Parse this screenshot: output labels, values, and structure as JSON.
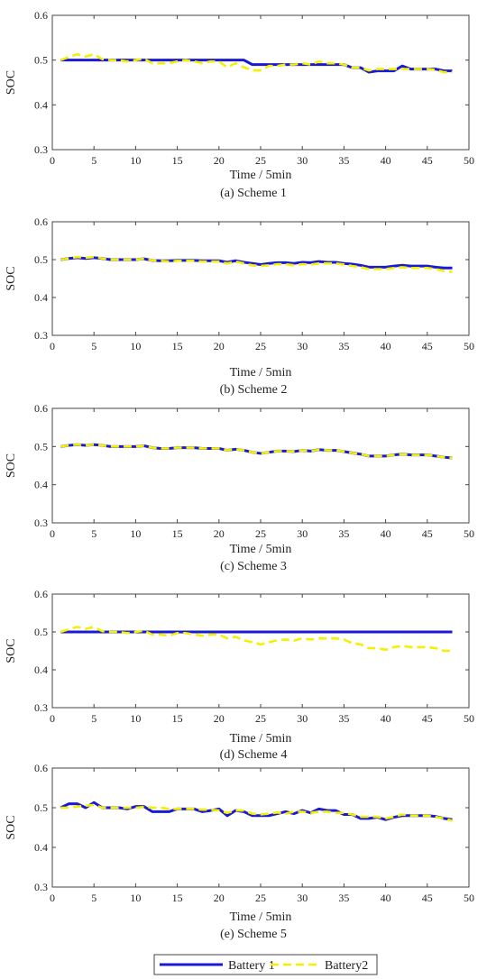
{
  "colors": {
    "battery1": "#1a1ad6",
    "battery2": "#f5f000",
    "axis": "#444444"
  },
  "legend": [
    {
      "label": "Battery  1",
      "style": "solid",
      "color": "#1a1ad6"
    },
    {
      "label": "Battery2",
      "style": "dashed",
      "color": "#f5f000"
    }
  ],
  "chart_data": [
    {
      "type": "line",
      "caption": "(a) Scheme 1",
      "xlabel": "Time / 5min",
      "ylabel": "SOC",
      "xlim": [
        0,
        50
      ],
      "ylim": [
        0.3,
        0.6
      ],
      "xticks": [
        "0",
        "5",
        "10",
        "15",
        "20",
        "25",
        "30",
        "35",
        "40",
        "45",
        "50"
      ],
      "yticks": [
        "0.3",
        "0.4",
        "0.5",
        "0.6"
      ],
      "grid": false,
      "x": [
        1,
        2,
        3,
        4,
        5,
        6,
        7,
        8,
        9,
        10,
        11,
        12,
        13,
        14,
        15,
        16,
        17,
        18,
        19,
        20,
        21,
        22,
        23,
        24,
        25,
        26,
        27,
        28,
        29,
        30,
        31,
        32,
        33,
        34,
        35,
        36,
        37,
        38,
        39,
        40,
        41,
        42,
        43,
        44,
        45,
        46,
        47,
        48
      ],
      "series": [
        {
          "name": "Battery  1",
          "values": [
            0.5,
            0.5,
            0.5,
            0.5,
            0.5,
            0.5,
            0.5,
            0.5,
            0.5,
            0.5,
            0.5,
            0.5,
            0.5,
            0.5,
            0.5,
            0.5,
            0.5,
            0.5,
            0.5,
            0.5,
            0.5,
            0.5,
            0.5,
            0.49,
            0.49,
            0.49,
            0.49,
            0.49,
            0.49,
            0.49,
            0.49,
            0.49,
            0.49,
            0.49,
            0.49,
            0.483,
            0.483,
            0.473,
            0.476,
            0.476,
            0.476,
            0.487,
            0.48,
            0.48,
            0.48,
            0.48,
            0.476,
            0.476
          ]
        },
        {
          "name": "Battery2",
          "values": [
            0.5,
            0.507,
            0.513,
            0.508,
            0.513,
            0.502,
            0.5,
            0.5,
            0.497,
            0.5,
            0.503,
            0.493,
            0.493,
            0.493,
            0.497,
            0.5,
            0.497,
            0.493,
            0.497,
            0.497,
            0.484,
            0.493,
            0.484,
            0.477,
            0.477,
            0.487,
            0.487,
            0.49,
            0.49,
            0.493,
            0.49,
            0.497,
            0.493,
            0.493,
            0.49,
            0.483,
            0.483,
            0.477,
            0.48,
            0.48,
            0.48,
            0.48,
            0.48,
            0.48,
            0.48,
            0.478,
            0.473,
            0.473
          ]
        }
      ]
    },
    {
      "type": "line",
      "caption": "(b) Scheme 2",
      "xlabel": "Time / 5min",
      "ylabel": "SOC",
      "xlim": [
        0,
        50
      ],
      "ylim": [
        0.3,
        0.6
      ],
      "xticks": [
        "0",
        "5",
        "10",
        "15",
        "20",
        "25",
        "30",
        "35",
        "40",
        "45",
        "50"
      ],
      "yticks": [
        "0.3",
        "0.4",
        "0.5",
        "0.6"
      ],
      "grid": false,
      "x": [
        1,
        2,
        3,
        4,
        5,
        6,
        7,
        8,
        9,
        10,
        11,
        12,
        13,
        14,
        15,
        16,
        17,
        18,
        19,
        20,
        21,
        22,
        23,
        24,
        25,
        26,
        27,
        28,
        29,
        30,
        31,
        32,
        33,
        34,
        35,
        36,
        37,
        38,
        39,
        40,
        41,
        42,
        43,
        44,
        45,
        46,
        47,
        48
      ],
      "series": [
        {
          "name": "Battery  1",
          "values": [
            0.5,
            0.503,
            0.505,
            0.503,
            0.505,
            0.503,
            0.5,
            0.5,
            0.5,
            0.5,
            0.502,
            0.498,
            0.497,
            0.497,
            0.498,
            0.498,
            0.498,
            0.497,
            0.497,
            0.497,
            0.493,
            0.497,
            0.493,
            0.49,
            0.487,
            0.49,
            0.492,
            0.492,
            0.49,
            0.493,
            0.492,
            0.495,
            0.493,
            0.493,
            0.49,
            0.488,
            0.485,
            0.48,
            0.48,
            0.48,
            0.483,
            0.485,
            0.483,
            0.483,
            0.483,
            0.48,
            0.478,
            0.478
          ]
        },
        {
          "name": "Battery2",
          "values": [
            0.5,
            0.503,
            0.507,
            0.505,
            0.507,
            0.503,
            0.5,
            0.5,
            0.5,
            0.5,
            0.502,
            0.498,
            0.497,
            0.495,
            0.497,
            0.497,
            0.497,
            0.495,
            0.495,
            0.495,
            0.49,
            0.495,
            0.49,
            0.485,
            0.483,
            0.485,
            0.488,
            0.488,
            0.485,
            0.488,
            0.487,
            0.49,
            0.49,
            0.49,
            0.487,
            0.483,
            0.48,
            0.475,
            0.475,
            0.475,
            0.478,
            0.48,
            0.478,
            0.478,
            0.478,
            0.475,
            0.47,
            0.468
          ]
        }
      ]
    },
    {
      "type": "line",
      "caption": "(c) Scheme 3",
      "xlabel": "Time / 5min",
      "ylabel": "SOC",
      "xlim": [
        0,
        50
      ],
      "ylim": [
        0.3,
        0.6
      ],
      "xticks": [
        "0",
        "5",
        "10",
        "15",
        "20",
        "25",
        "30",
        "35",
        "40",
        "45",
        "50"
      ],
      "yticks": [
        "0.3",
        "0.4",
        "0.5",
        "0.6"
      ],
      "grid": false,
      "x": [
        1,
        2,
        3,
        4,
        5,
        6,
        7,
        8,
        9,
        10,
        11,
        12,
        13,
        14,
        15,
        16,
        17,
        18,
        19,
        20,
        21,
        22,
        23,
        24,
        25,
        26,
        27,
        28,
        29,
        30,
        31,
        32,
        33,
        34,
        35,
        36,
        37,
        38,
        39,
        40,
        41,
        42,
        43,
        44,
        45,
        46,
        47,
        48
      ],
      "series": [
        {
          "name": "Battery  1",
          "values": [
            0.5,
            0.503,
            0.505,
            0.503,
            0.505,
            0.503,
            0.5,
            0.5,
            0.5,
            0.5,
            0.502,
            0.497,
            0.495,
            0.495,
            0.497,
            0.497,
            0.497,
            0.495,
            0.495,
            0.495,
            0.49,
            0.493,
            0.49,
            0.485,
            0.482,
            0.485,
            0.488,
            0.488,
            0.487,
            0.49,
            0.488,
            0.492,
            0.49,
            0.49,
            0.487,
            0.483,
            0.48,
            0.475,
            0.475,
            0.475,
            0.478,
            0.48,
            0.478,
            0.478,
            0.478,
            0.475,
            0.472,
            0.47
          ]
        },
        {
          "name": "Battery2",
          "values": [
            0.5,
            0.503,
            0.505,
            0.503,
            0.505,
            0.503,
            0.5,
            0.5,
            0.5,
            0.5,
            0.502,
            0.497,
            0.495,
            0.495,
            0.497,
            0.497,
            0.497,
            0.495,
            0.495,
            0.495,
            0.49,
            0.493,
            0.49,
            0.485,
            0.482,
            0.485,
            0.488,
            0.488,
            0.487,
            0.49,
            0.488,
            0.492,
            0.49,
            0.49,
            0.487,
            0.483,
            0.48,
            0.475,
            0.475,
            0.475,
            0.478,
            0.48,
            0.478,
            0.478,
            0.478,
            0.475,
            0.472,
            0.47
          ]
        }
      ]
    },
    {
      "type": "line",
      "caption": "(d) Scheme 4",
      "xlabel": "Time / 5min",
      "ylabel": "SOC",
      "xlim": [
        0,
        50
      ],
      "ylim": [
        0.3,
        0.6
      ],
      "xticks": [
        "0",
        "5",
        "10",
        "15",
        "20",
        "25",
        "30",
        "35",
        "40",
        "45",
        "50"
      ],
      "yticks": [
        "0.3",
        "0.4",
        "0.5",
        "0.6"
      ],
      "grid": false,
      "x": [
        1,
        2,
        3,
        4,
        5,
        6,
        7,
        8,
        9,
        10,
        11,
        12,
        13,
        14,
        15,
        16,
        17,
        18,
        19,
        20,
        21,
        22,
        23,
        24,
        25,
        26,
        27,
        28,
        29,
        30,
        31,
        32,
        33,
        34,
        35,
        36,
        37,
        38,
        39,
        40,
        41,
        42,
        43,
        44,
        45,
        46,
        47,
        48
      ],
      "series": [
        {
          "name": "Battery  1",
          "values": [
            0.5,
            0.5,
            0.5,
            0.5,
            0.5,
            0.5,
            0.5,
            0.5,
            0.5,
            0.5,
            0.5,
            0.5,
            0.5,
            0.5,
            0.5,
            0.5,
            0.5,
            0.5,
            0.5,
            0.5,
            0.5,
            0.5,
            0.5,
            0.5,
            0.5,
            0.5,
            0.5,
            0.5,
            0.5,
            0.5,
            0.5,
            0.5,
            0.5,
            0.5,
            0.5,
            0.5,
            0.5,
            0.5,
            0.5,
            0.5,
            0.5,
            0.5,
            0.5,
            0.5,
            0.5,
            0.5,
            0.5,
            0.5
          ]
        },
        {
          "name": "Battery2",
          "values": [
            0.5,
            0.507,
            0.513,
            0.508,
            0.513,
            0.502,
            0.5,
            0.5,
            0.497,
            0.5,
            0.503,
            0.493,
            0.493,
            0.49,
            0.497,
            0.497,
            0.493,
            0.49,
            0.493,
            0.493,
            0.483,
            0.487,
            0.478,
            0.473,
            0.467,
            0.473,
            0.478,
            0.48,
            0.477,
            0.483,
            0.48,
            0.483,
            0.483,
            0.483,
            0.48,
            0.47,
            0.467,
            0.457,
            0.457,
            0.453,
            0.46,
            0.463,
            0.46,
            0.46,
            0.46,
            0.457,
            0.45,
            0.45
          ]
        }
      ]
    },
    {
      "type": "line",
      "caption": "(e) Scheme 5",
      "xlabel": "Time / 5min",
      "ylabel": "SOC",
      "xlim": [
        0,
        50
      ],
      "ylim": [
        0.3,
        0.6
      ],
      "xticks": [
        "0",
        "5",
        "10",
        "15",
        "20",
        "25",
        "30",
        "35",
        "40",
        "45",
        "50"
      ],
      "yticks": [
        "0.3",
        "0.4",
        "0.5",
        "0.6"
      ],
      "grid": false,
      "x": [
        1,
        2,
        3,
        4,
        5,
        6,
        7,
        8,
        9,
        10,
        11,
        12,
        13,
        14,
        15,
        16,
        17,
        18,
        19,
        20,
        21,
        22,
        23,
        24,
        25,
        26,
        27,
        28,
        29,
        30,
        31,
        32,
        33,
        34,
        35,
        36,
        37,
        38,
        39,
        40,
        41,
        42,
        43,
        44,
        45,
        46,
        47,
        48
      ],
      "series": [
        {
          "name": "Battery  1",
          "values": [
            0.5,
            0.51,
            0.51,
            0.5,
            0.513,
            0.5,
            0.5,
            0.5,
            0.497,
            0.503,
            0.503,
            0.49,
            0.49,
            0.49,
            0.497,
            0.497,
            0.497,
            0.49,
            0.493,
            0.497,
            0.48,
            0.493,
            0.49,
            0.48,
            0.48,
            0.48,
            0.485,
            0.49,
            0.485,
            0.493,
            0.487,
            0.497,
            0.493,
            0.493,
            0.483,
            0.483,
            0.473,
            0.473,
            0.476,
            0.47,
            0.476,
            0.48,
            0.48,
            0.48,
            0.48,
            0.478,
            0.473,
            0.47
          ]
        },
        {
          "name": "Battery2",
          "values": [
            0.5,
            0.5,
            0.503,
            0.505,
            0.507,
            0.5,
            0.5,
            0.5,
            0.5,
            0.5,
            0.502,
            0.5,
            0.5,
            0.497,
            0.497,
            0.497,
            0.497,
            0.495,
            0.495,
            0.493,
            0.487,
            0.493,
            0.493,
            0.485,
            0.483,
            0.485,
            0.488,
            0.485,
            0.49,
            0.49,
            0.487,
            0.49,
            0.49,
            0.487,
            0.487,
            0.483,
            0.477,
            0.477,
            0.477,
            0.473,
            0.477,
            0.483,
            0.48,
            0.48,
            0.48,
            0.477,
            0.473,
            0.467
          ]
        }
      ]
    }
  ]
}
